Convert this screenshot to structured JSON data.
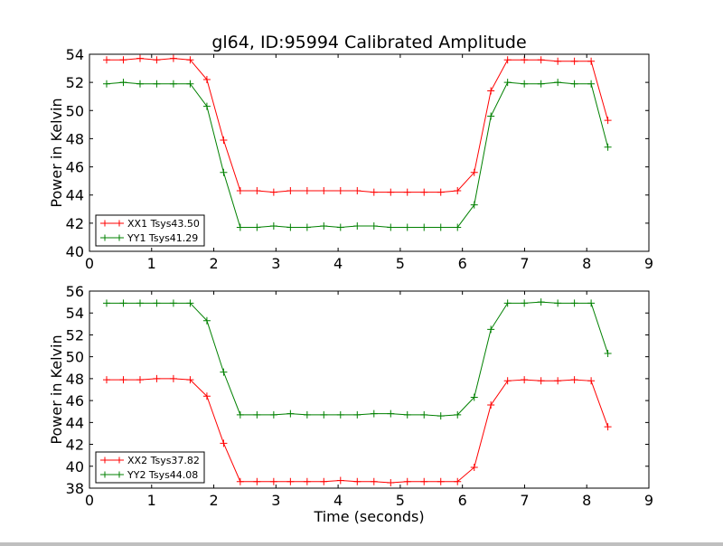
{
  "chart_data": [
    {
      "type": "line",
      "title": "gl64, ID:95994 Calibrated Amplitude",
      "xlabel": "",
      "ylabel": "Power in Kelvin",
      "xlim": [
        0,
        9
      ],
      "ylim": [
        40,
        54
      ],
      "xticks": [
        "0",
        "1",
        "2",
        "3",
        "4",
        "5",
        "6",
        "7",
        "8",
        "9"
      ],
      "yticks": [
        "40",
        "42",
        "44",
        "46",
        "48",
        "50",
        "52",
        "54"
      ],
      "grid": false,
      "legend_position": "lower-left",
      "x": [
        0.276,
        0.545,
        0.814,
        1.082,
        1.351,
        1.62,
        1.889,
        2.158,
        2.426,
        2.695,
        2.964,
        3.233,
        3.502,
        3.77,
        4.039,
        4.308,
        4.577,
        4.846,
        5.114,
        5.383,
        5.652,
        5.921,
        6.19,
        6.458,
        6.727,
        6.996,
        7.265,
        7.534,
        7.802,
        8.071,
        8.34
      ],
      "series": [
        {
          "name": "XX1 Tsys43.50",
          "color": "#ff0000",
          "values": [
            53.6,
            53.6,
            53.7,
            53.6,
            53.7,
            53.6,
            52.2,
            47.9,
            44.3,
            44.3,
            44.2,
            44.3,
            44.3,
            44.3,
            44.3,
            44.3,
            44.2,
            44.2,
            44.2,
            44.2,
            44.2,
            44.3,
            45.6,
            51.4,
            53.6,
            53.6,
            53.6,
            53.5,
            53.5,
            53.5,
            49.3
          ]
        },
        {
          "name": "YY1 Tsys41.29",
          "color": "#008000",
          "values": [
            51.9,
            52.0,
            51.9,
            51.9,
            51.9,
            51.9,
            50.3,
            45.6,
            41.7,
            41.7,
            41.8,
            41.7,
            41.7,
            41.8,
            41.7,
            41.8,
            41.8,
            41.7,
            41.7,
            41.7,
            41.7,
            41.7,
            43.3,
            49.6,
            52.0,
            51.9,
            51.9,
            52.0,
            51.9,
            51.9,
            47.4
          ]
        }
      ]
    },
    {
      "type": "line",
      "title": "",
      "xlabel": "Time (seconds)",
      "ylabel": "Power in Kelvin",
      "xlim": [
        0,
        9
      ],
      "ylim": [
        38,
        56
      ],
      "xticks": [
        "0",
        "1",
        "2",
        "3",
        "4",
        "5",
        "6",
        "7",
        "8",
        "9"
      ],
      "yticks": [
        "38",
        "40",
        "42",
        "44",
        "46",
        "48",
        "50",
        "52",
        "54",
        "56"
      ],
      "grid": false,
      "legend_position": "lower-left",
      "x": [
        0.276,
        0.545,
        0.814,
        1.082,
        1.351,
        1.62,
        1.889,
        2.158,
        2.426,
        2.695,
        2.964,
        3.233,
        3.502,
        3.77,
        4.039,
        4.308,
        4.577,
        4.846,
        5.114,
        5.383,
        5.652,
        5.921,
        6.19,
        6.458,
        6.727,
        6.996,
        7.265,
        7.534,
        7.802,
        8.071,
        8.34
      ],
      "series": [
        {
          "name": "XX2 Tsys37.82",
          "color": "#ff0000",
          "values": [
            47.9,
            47.9,
            47.9,
            48.0,
            48.0,
            47.9,
            46.4,
            42.1,
            38.6,
            38.6,
            38.6,
            38.6,
            38.6,
            38.6,
            38.7,
            38.6,
            38.6,
            38.5,
            38.6,
            38.6,
            38.6,
            38.6,
            39.9,
            45.6,
            47.8,
            47.9,
            47.8,
            47.8,
            47.9,
            47.8,
            43.6
          ]
        },
        {
          "name": "YY2 Tsys44.08",
          "color": "#008000",
          "values": [
            54.9,
            54.9,
            54.9,
            54.9,
            54.9,
            54.9,
            53.3,
            48.6,
            44.7,
            44.7,
            44.7,
            44.8,
            44.7,
            44.7,
            44.7,
            44.7,
            44.8,
            44.8,
            44.7,
            44.7,
            44.6,
            44.7,
            46.3,
            52.5,
            54.9,
            54.9,
            55.0,
            54.9,
            54.9,
            54.9,
            50.3
          ]
        }
      ]
    }
  ]
}
